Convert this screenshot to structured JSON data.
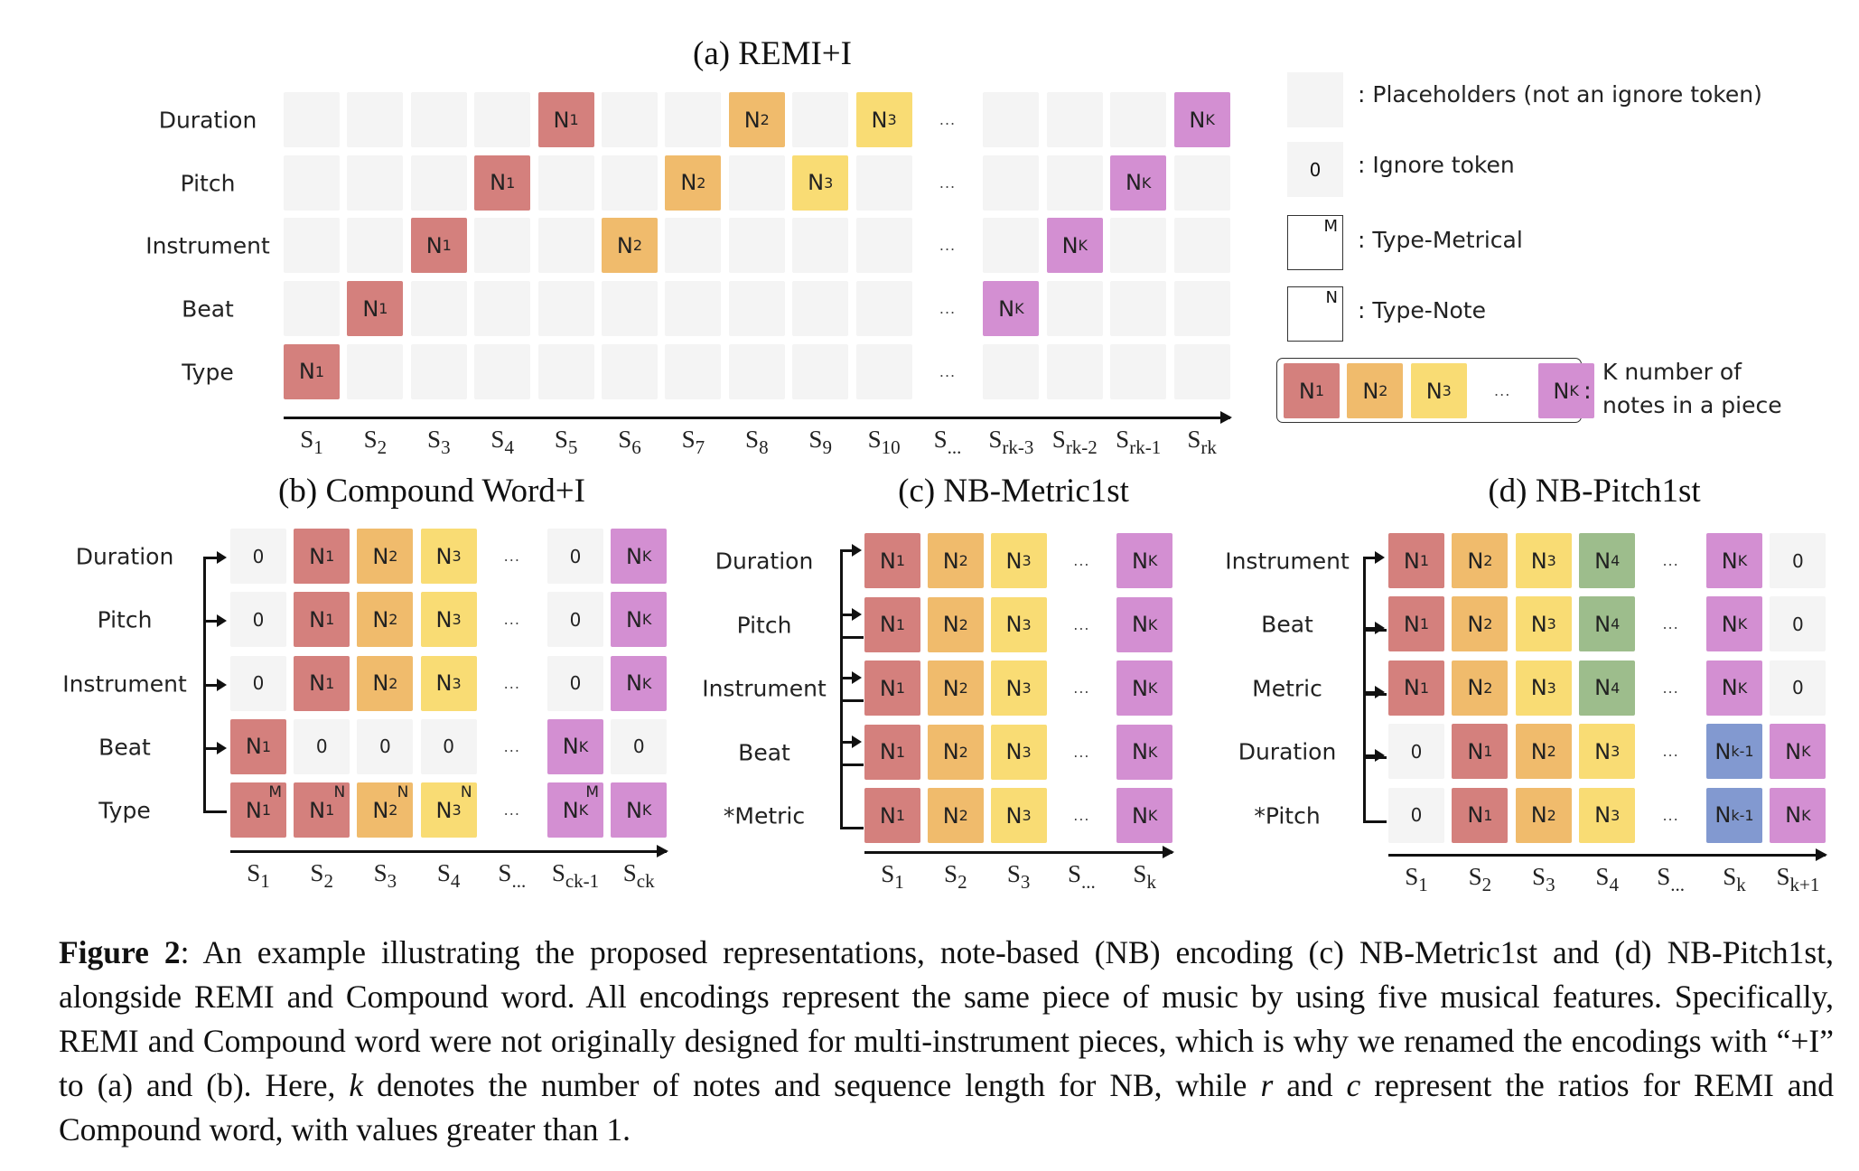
{
  "colors": {
    "N1": "#d4807d",
    "N2": "#f0bb6c",
    "N3": "#f9dc74",
    "N4": "#9dbd8c",
    "NK": "#d38fd2",
    "Nk-1": "#8299d0",
    "placeholder": "#f4f4f4"
  },
  "panel_a": {
    "title": "(a) REMI+I",
    "rows": [
      "Duration",
      "Pitch",
      "Instrument",
      "Beat",
      "Type"
    ],
    "ticks": [
      "S|1",
      "S|2",
      "S|3",
      "S|4",
      "S|5",
      "S|6",
      "S|7",
      "S|8",
      "S|9",
      "S|10",
      "S|...",
      "S|rk-3",
      "S|rk-2",
      "S|rk-1",
      "S|rk"
    ],
    "grid": [
      [
        "",
        "",
        "",
        "",
        "N1",
        "",
        "",
        "N2",
        "",
        "N3",
        "...",
        "",
        "",
        "",
        "NK"
      ],
      [
        "",
        "",
        "",
        "N1",
        "",
        "",
        "N2",
        "",
        "N3",
        "",
        "...",
        "",
        "",
        "NK",
        ""
      ],
      [
        "",
        "",
        "N1",
        "",
        "",
        "N2",
        "",
        "",
        "",
        "",
        "...",
        "",
        "NK",
        "",
        ""
      ],
      [
        "",
        "N1",
        "",
        "",
        "",
        "",
        "",
        "",
        "",
        "",
        "...",
        "NK",
        "",
        "",
        ""
      ],
      [
        "N1",
        "",
        "",
        "",
        "",
        "",
        "",
        "",
        "",
        "",
        "...",
        "",
        "",
        "",
        ""
      ]
    ]
  },
  "legend": {
    "items": [
      {
        "kind": "placeholder",
        "label": ": Placeholders (not an ignore token)"
      },
      {
        "kind": "ignore",
        "symbol": "0",
        "label": ": Ignore token"
      },
      {
        "kind": "type-metrical",
        "symbol": "M",
        "label": ": Type-Metrical"
      },
      {
        "kind": "type-note",
        "symbol": "N",
        "label": ": Type-Note"
      }
    ],
    "notes": [
      "N1",
      "N2",
      "N3",
      "...",
      "NK"
    ],
    "notes_label_line1": "K number of",
    "notes_label_line2": "notes in a piece"
  },
  "panel_b": {
    "title": "(b) Compound Word+I",
    "rows": [
      "Duration",
      "Pitch",
      "Instrument",
      "Beat",
      "Type"
    ],
    "ticks": [
      "S|1",
      "S|2",
      "S|3",
      "S|4",
      "S|...",
      "S|ck-1",
      "S|ck"
    ],
    "grid": [
      [
        "0",
        "N1",
        "N2",
        "N3",
        "...",
        "0",
        "NK"
      ],
      [
        "0",
        "N1",
        "N2",
        "N3",
        "...",
        "0",
        "NK"
      ],
      [
        "0",
        "N1",
        "N2",
        "N3",
        "...",
        "0",
        "NK"
      ],
      [
        "N1",
        "0",
        "0",
        "0",
        "...",
        "NK",
        "0"
      ],
      [
        "N1^M",
        "N1^N",
        "N2^N",
        "N3^N",
        "...",
        "NK^M",
        "NK"
      ]
    ]
  },
  "panel_c": {
    "title": "(c) NB-Metric1st",
    "rows": [
      "Duration",
      "Pitch",
      "Instrument",
      "Beat",
      "*Metric"
    ],
    "ticks": [
      "S|1",
      "S|2",
      "S|3",
      "S|...",
      "S|k"
    ],
    "grid": [
      [
        "N1",
        "N2",
        "N3",
        "...",
        "NK"
      ],
      [
        "N1",
        "N2",
        "N3",
        "...",
        "NK"
      ],
      [
        "N1",
        "N2",
        "N3",
        "...",
        "NK"
      ],
      [
        "N1",
        "N2",
        "N3",
        "...",
        "NK"
      ],
      [
        "N1",
        "N2",
        "N3",
        "...",
        "NK"
      ]
    ]
  },
  "panel_d": {
    "title": "(d) NB-Pitch1st",
    "rows": [
      "Instrument",
      "Beat",
      "Metric",
      "Duration",
      "*Pitch"
    ],
    "ticks": [
      "S|1",
      "S|2",
      "S|3",
      "S|4",
      "S|...",
      "S|k",
      "S|k+1"
    ],
    "grid": [
      [
        "N1",
        "N2",
        "N3",
        "N4",
        "...",
        "NK",
        "0"
      ],
      [
        "N1",
        "N2",
        "N3",
        "N4",
        "...",
        "NK",
        "0"
      ],
      [
        "N1",
        "N2",
        "N3",
        "N4",
        "...",
        "NK",
        "0"
      ],
      [
        "0",
        "N1",
        "N2",
        "N3",
        "...",
        "Nk-1",
        "NK"
      ],
      [
        "0",
        "N1",
        "N2",
        "N3",
        "...",
        "Nk-1",
        "NK"
      ]
    ]
  },
  "caption": {
    "label": "Figure 2",
    "text": ":  An example illustrating the proposed representations, note-based (NB) encoding (c) NB-Metric1st and (d) NB-Pitch1st, alongside REMI and Compound word. All encodings represent the same piece of music by using five musical features. Specifically, REMI and Compound word were not originally designed for multi-instrument pieces, which is why we renamed the encodings with “+I” to (a) and (b). Here, ",
    "var_k": "k",
    "text2": " denotes the number of notes and sequence length for NB, while ",
    "var_r": "r",
    "text3": " and ",
    "var_c": "c",
    "text4": " represent the ratios for REMI and Compound word, with values greater than 1."
  }
}
